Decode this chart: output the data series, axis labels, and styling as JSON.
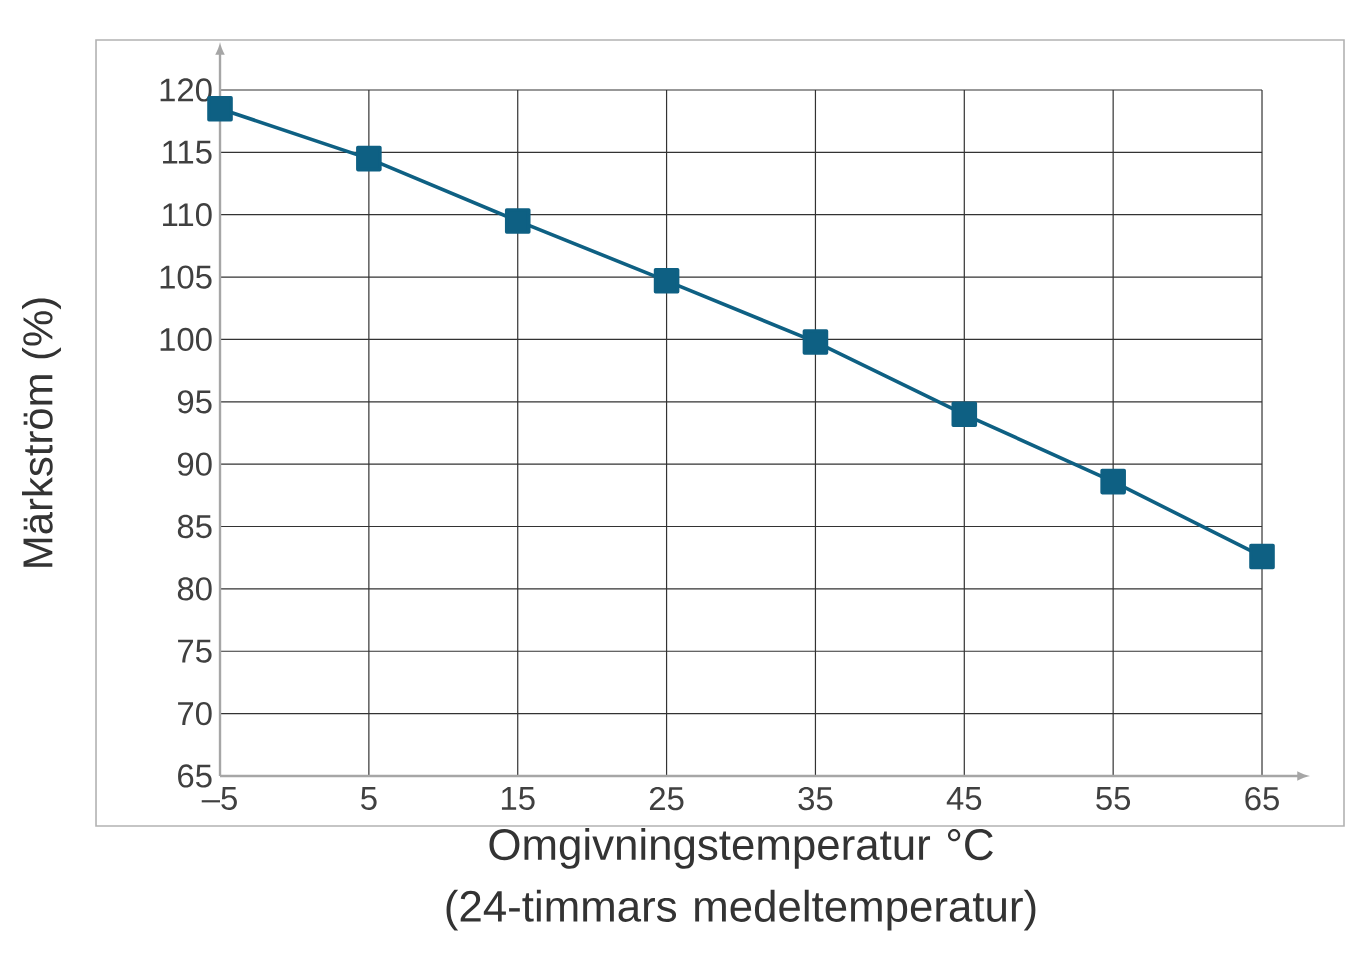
{
  "chart_data": {
    "type": "line",
    "xlabel": "Omgivningstemperatur °C (24-timmars medeltemperatur)",
    "ylabel": "Märkström (%)",
    "x": [
      -5,
      5,
      15,
      25,
      35,
      45,
      55,
      65
    ],
    "series": [
      {
        "color": "#0e6083",
        "values": [
          118.5,
          114.5,
          109.5,
          104.7,
          99.8,
          94,
          88.6,
          82.6
        ]
      }
    ],
    "xlim": [
      -5,
      65
    ],
    "ylim": [
      65,
      120
    ],
    "xticks": [
      {
        "value": -5,
        "label": "–5"
      },
      5,
      15,
      25,
      35,
      45,
      55,
      65
    ],
    "yticks": [
      65,
      70,
      75,
      80,
      85,
      90,
      95,
      100,
      105,
      110,
      115,
      120
    ],
    "grid": true,
    "marker": "square",
    "line_style": "solid"
  }
}
